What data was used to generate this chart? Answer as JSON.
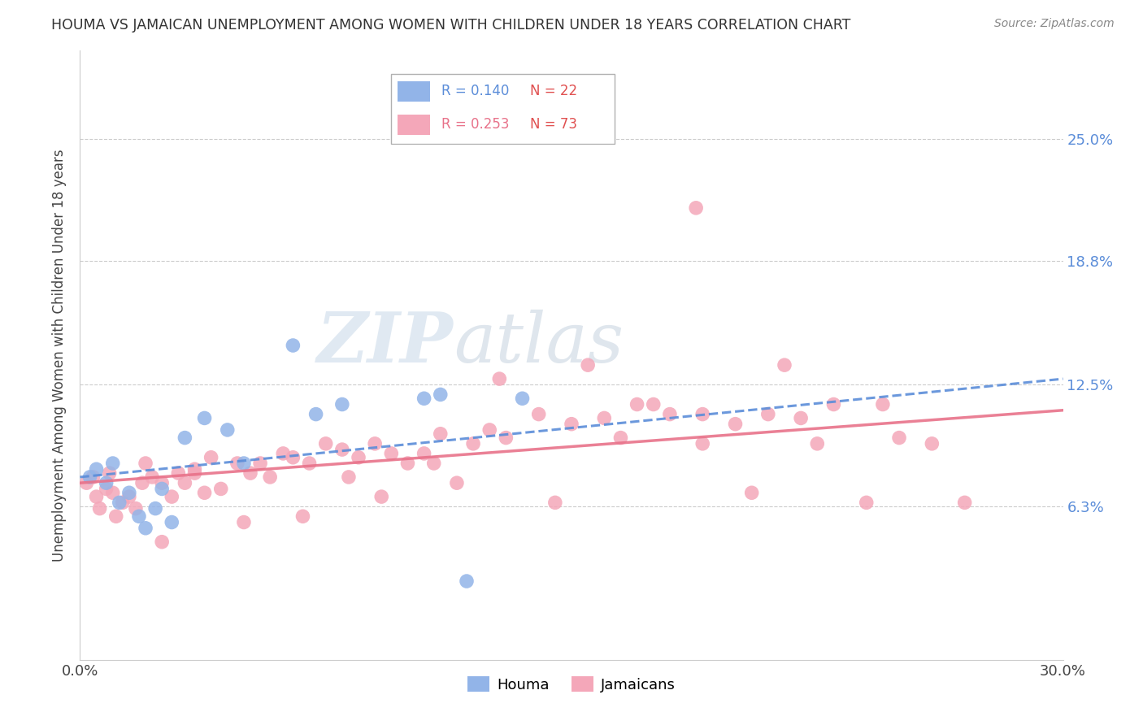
{
  "title": "HOUMA VS JAMAICAN UNEMPLOYMENT AMONG WOMEN WITH CHILDREN UNDER 18 YEARS CORRELATION CHART",
  "source": "Source: ZipAtlas.com",
  "ylabel": "Unemployment Among Women with Children Under 18 years",
  "xmin": 0.0,
  "xmax": 30.0,
  "ymin": 0.0,
  "ymax": 28.0,
  "yticks": [
    6.3,
    12.5,
    18.8,
    25.0
  ],
  "ytick_labels": [
    "6.3%",
    "12.5%",
    "18.8%",
    "25.0%"
  ],
  "houma_R": "0.140",
  "houma_N": "22",
  "jamaican_R": "0.253",
  "jamaican_N": "73",
  "legend_label_houma": "Houma",
  "legend_label_jamaican": "Jamaicans",
  "houma_color": "#92b4e8",
  "jamaican_color": "#f4a7b9",
  "houma_line_color": "#5b8dd9",
  "jamaican_line_color": "#e8728a",
  "houma_line_style": "--",
  "jamaican_line_style": "-",
  "watermark_ZIP": "ZIP",
  "watermark_atlas": "atlas",
  "houma_x": [
    0.3,
    0.5,
    0.8,
    1.0,
    1.2,
    1.5,
    1.8,
    2.0,
    2.3,
    2.5,
    2.8,
    3.2,
    3.8,
    4.5,
    5.0,
    6.5,
    7.2,
    8.0,
    10.5,
    11.0,
    13.5,
    11.8
  ],
  "houma_y": [
    7.8,
    8.2,
    7.5,
    8.5,
    6.5,
    7.0,
    5.8,
    5.2,
    6.2,
    7.2,
    5.5,
    9.8,
    10.8,
    10.2,
    8.5,
    14.5,
    11.0,
    11.5,
    11.8,
    12.0,
    11.8,
    2.5
  ],
  "jamaican_x": [
    0.2,
    0.4,
    0.5,
    0.6,
    0.8,
    0.9,
    1.0,
    1.1,
    1.3,
    1.5,
    1.7,
    1.9,
    2.0,
    2.2,
    2.5,
    2.8,
    3.0,
    3.2,
    3.5,
    3.8,
    4.0,
    4.3,
    4.8,
    5.2,
    5.5,
    5.8,
    6.2,
    6.5,
    7.0,
    7.5,
    8.0,
    8.5,
    9.0,
    9.5,
    10.0,
    10.5,
    11.0,
    12.0,
    12.5,
    13.0,
    14.0,
    15.0,
    16.0,
    17.0,
    18.0,
    19.0,
    20.0,
    21.0,
    22.0,
    23.0,
    24.0,
    25.0,
    26.0,
    27.0,
    14.5,
    9.2,
    10.8,
    15.5,
    17.5,
    20.5,
    22.5,
    19.0,
    16.5,
    11.5,
    8.2,
    6.8,
    5.0,
    3.5,
    2.5,
    24.5,
    18.8,
    21.5,
    12.8
  ],
  "jamaican_y": [
    7.5,
    7.8,
    6.8,
    6.2,
    7.2,
    8.0,
    7.0,
    5.8,
    6.5,
    6.8,
    6.2,
    7.5,
    8.5,
    7.8,
    7.5,
    6.8,
    8.0,
    7.5,
    8.2,
    7.0,
    8.8,
    7.2,
    8.5,
    8.0,
    8.5,
    7.8,
    9.0,
    8.8,
    8.5,
    9.5,
    9.2,
    8.8,
    9.5,
    9.0,
    8.5,
    9.0,
    10.0,
    9.5,
    10.2,
    9.8,
    11.0,
    10.5,
    10.8,
    11.5,
    11.0,
    9.5,
    10.5,
    11.0,
    10.8,
    11.5,
    6.5,
    9.8,
    9.5,
    6.5,
    6.5,
    6.8,
    8.5,
    13.5,
    11.5,
    7.0,
    9.5,
    11.0,
    9.8,
    7.5,
    7.8,
    5.8,
    5.5,
    8.0,
    4.5,
    11.5,
    21.5,
    13.5,
    12.8
  ],
  "houma_trendline_x0": 0.0,
  "houma_trendline_x1": 30.0,
  "houma_trendline_y0": 7.8,
  "houma_trendline_y1": 12.8,
  "jamaican_trendline_x0": 0.0,
  "jamaican_trendline_x1": 30.0,
  "jamaican_trendline_y0": 7.5,
  "jamaican_trendline_y1": 11.2
}
